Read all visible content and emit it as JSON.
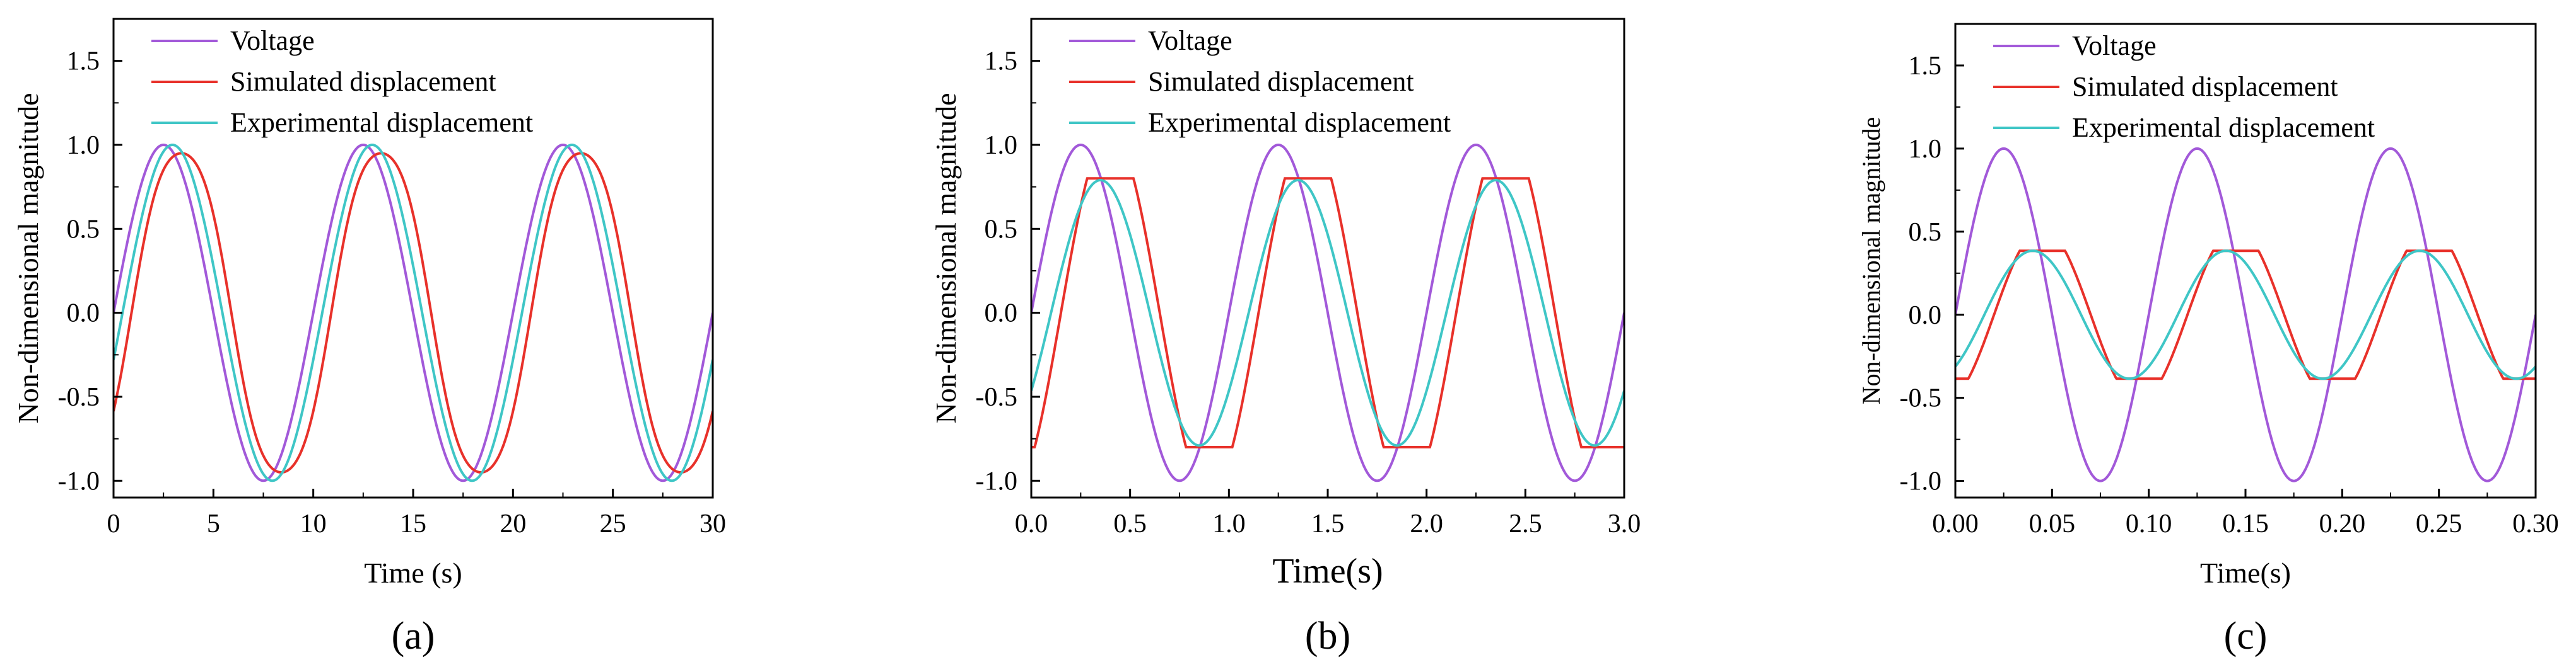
{
  "figure": {
    "panels": [
      "(a)",
      "(b)",
      "(c)"
    ]
  },
  "colors": {
    "voltage": "#a259d9",
    "simulated": "#e8312a",
    "experimental": "#3fc6c6",
    "axis": "#000000"
  },
  "chart_data": [
    {
      "type": "line",
      "panel_label": "(a)",
      "xlabel": "Time (s)",
      "ylabel": "Non-dimensional magnitude",
      "xlim": [
        0,
        30
      ],
      "ylim": [
        -1.1,
        1.75
      ],
      "xticks": [
        0,
        5,
        10,
        15,
        20,
        25,
        30
      ],
      "xtick_labels": [
        "0",
        "5",
        "10",
        "15",
        "20",
        "25",
        "30"
      ],
      "yticks": [
        -1.0,
        -0.5,
        0.0,
        0.5,
        1.0,
        1.5
      ],
      "ytick_labels": [
        "-1.0",
        "-0.5",
        "0.0",
        "0.5",
        "1.0",
        "1.5"
      ],
      "grid": false,
      "legend_position": "top-left",
      "period": 10,
      "series": [
        {
          "name": "Voltage",
          "color": "#a259d9",
          "amplitude": 1.0,
          "phase_shift": 0.0,
          "x_start": 0.0
        },
        {
          "name": "Simulated displacement",
          "color": "#e8312a",
          "amplitude": 1.0,
          "phase_shift": 0.9,
          "x_start": 0.0
        },
        {
          "name": "Experimental displacement",
          "color": "#3fc6c6",
          "amplitude": 1.0,
          "phase_shift": 0.45,
          "x_start": 0.0
        }
      ]
    },
    {
      "type": "line",
      "panel_label": "(b)",
      "xlabel": "Time(s)",
      "ylabel": "Non-dimensional magnitude",
      "xlim": [
        0,
        3.0
      ],
      "ylim": [
        -1.1,
        1.75
      ],
      "xticks": [
        0,
        0.5,
        1.0,
        1.5,
        2.0,
        2.5,
        3.0
      ],
      "xtick_labels": [
        "0.0",
        "0.5",
        "1.0",
        "1.5",
        "2.0",
        "2.5",
        "3.0"
      ],
      "yticks": [
        -1.0,
        -0.5,
        0.0,
        0.5,
        1.0,
        1.5
      ],
      "ytick_labels": [
        "-1.0",
        "-0.5",
        "0.0",
        "0.5",
        "1.0",
        "1.5"
      ],
      "grid": false,
      "legend_position": "top-left",
      "period": 1.0,
      "series": [
        {
          "name": "Voltage",
          "color": "#a259d9",
          "amplitude": 1.0,
          "phase_shift": 0.0,
          "x_start": 0.0
        },
        {
          "name": "Simulated displacement",
          "color": "#e8312a",
          "amplitude": 0.8,
          "phase_shift": 0.15,
          "x_start": 0.0
        },
        {
          "name": "Experimental displacement",
          "color": "#3fc6c6",
          "amplitude": 0.79,
          "phase_shift": 0.1,
          "x_start": 0.0
        }
      ]
    },
    {
      "type": "line",
      "panel_label": "(c)",
      "xlabel": "Time(s)",
      "ylabel": "Non-dimensional magnitude",
      "xlim": [
        0,
        0.3
      ],
      "ylim": [
        -1.1,
        1.75
      ],
      "xticks": [
        0,
        0.05,
        0.1,
        0.15,
        0.2,
        0.25,
        0.3
      ],
      "xtick_labels": [
        "0.00",
        "0.05",
        "0.10",
        "0.15",
        "0.20",
        "0.25",
        "0.30"
      ],
      "yticks": [
        -1.0,
        -0.5,
        0.0,
        0.5,
        1.0,
        1.5
      ],
      "ytick_labels": [
        "-1.0",
        "-0.5",
        "0.0",
        "0.5",
        "1.0",
        "1.5"
      ],
      "grid": false,
      "legend_position": "top-left",
      "period": 0.1,
      "series": [
        {
          "name": "Voltage",
          "color": "#a259d9",
          "amplitude": 1.0,
          "phase_shift": 0.0,
          "x_start": 0.0
        },
        {
          "name": "Simulated displacement",
          "color": "#e8312a",
          "amplitude": 0.385,
          "phase_shift": 0.02,
          "x_start": 0.0
        },
        {
          "name": "Experimental displacement",
          "color": "#3fc6c6",
          "amplitude": 0.385,
          "phase_shift": 0.015,
          "x_start": 0.0
        }
      ]
    }
  ]
}
